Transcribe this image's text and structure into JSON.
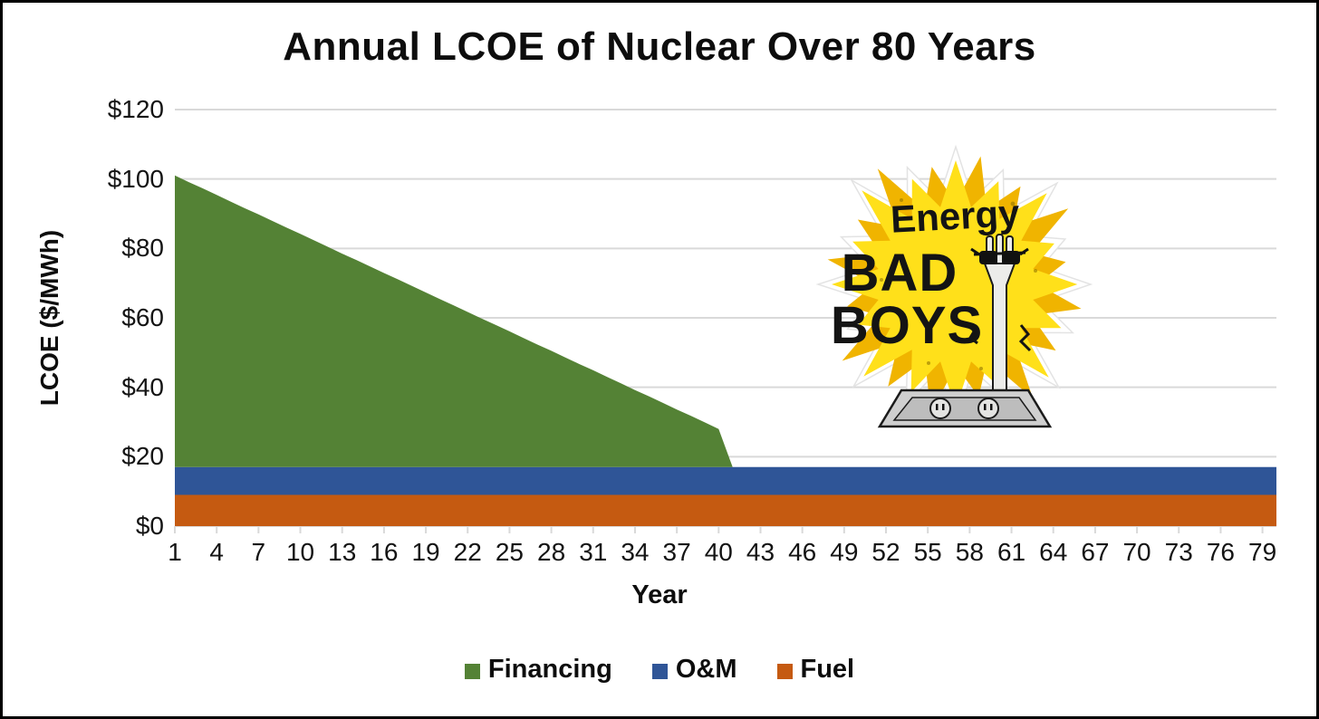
{
  "title": "Annual LCOE of Nuclear Over 80 Years",
  "y_axis": {
    "title": "LCOE ($/MWh)",
    "tick_labels": [
      "$0",
      "$20",
      "$40",
      "$60",
      "$80",
      "$100",
      "$120"
    ],
    "min": 0,
    "max": 120,
    "step": 20
  },
  "x_axis": {
    "title": "Year",
    "tick_labels": [
      "1",
      "4",
      "7",
      "10",
      "13",
      "16",
      "19",
      "22",
      "25",
      "28",
      "31",
      "34",
      "37",
      "40",
      "43",
      "46",
      "49",
      "52",
      "55",
      "58",
      "61",
      "64",
      "67",
      "70",
      "73",
      "76",
      "79"
    ]
  },
  "legend": [
    {
      "label": "Financing",
      "color": "#548235"
    },
    {
      "label": "O&M",
      "color": "#2F5597"
    },
    {
      "label": "Fuel",
      "color": "#C55A11"
    }
  ],
  "logo": {
    "line1": "Energy",
    "line2": "BAD",
    "line3": "BOYS"
  },
  "colors": {
    "financing": "#548235",
    "om": "#2F5597",
    "fuel": "#C55A11",
    "gridline": "#d9d9d9",
    "logo_yellow": "#FFE01A",
    "logo_yellow_dark": "#F0B400"
  },
  "chart_data": {
    "type": "area",
    "stacked": true,
    "title": "Annual LCOE of Nuclear Over 80 Years",
    "xlabel": "Year",
    "ylabel": "LCOE ($/MWh)",
    "ylim": [
      0,
      120
    ],
    "grid": true,
    "legend_position": "bottom",
    "x": [
      1,
      2,
      3,
      4,
      5,
      6,
      7,
      8,
      9,
      10,
      11,
      12,
      13,
      14,
      15,
      16,
      17,
      18,
      19,
      20,
      21,
      22,
      23,
      24,
      25,
      26,
      27,
      28,
      29,
      30,
      31,
      32,
      33,
      34,
      35,
      36,
      37,
      38,
      39,
      40,
      41,
      42,
      43,
      44,
      45,
      46,
      47,
      48,
      49,
      50,
      51,
      52,
      53,
      54,
      55,
      56,
      57,
      58,
      59,
      60,
      61,
      62,
      63,
      64,
      65,
      66,
      67,
      68,
      69,
      70,
      71,
      72,
      73,
      74,
      75,
      76,
      77,
      78,
      79,
      80
    ],
    "series": [
      {
        "name": "Fuel",
        "color": "#C55A11",
        "values": [
          9,
          9,
          9,
          9,
          9,
          9,
          9,
          9,
          9,
          9,
          9,
          9,
          9,
          9,
          9,
          9,
          9,
          9,
          9,
          9,
          9,
          9,
          9,
          9,
          9,
          9,
          9,
          9,
          9,
          9,
          9,
          9,
          9,
          9,
          9,
          9,
          9,
          9,
          9,
          9,
          9,
          9,
          9,
          9,
          9,
          9,
          9,
          9,
          9,
          9,
          9,
          9,
          9,
          9,
          9,
          9,
          9,
          9,
          9,
          9,
          9,
          9,
          9,
          9,
          9,
          9,
          9,
          9,
          9,
          9,
          9,
          9,
          9,
          9,
          9,
          9,
          9,
          9,
          9,
          9
        ]
      },
      {
        "name": "O&M",
        "color": "#2F5597",
        "values": [
          8,
          8,
          8,
          8,
          8,
          8,
          8,
          8,
          8,
          8,
          8,
          8,
          8,
          8,
          8,
          8,
          8,
          8,
          8,
          8,
          8,
          8,
          8,
          8,
          8,
          8,
          8,
          8,
          8,
          8,
          8,
          8,
          8,
          8,
          8,
          8,
          8,
          8,
          8,
          8,
          8,
          8,
          8,
          8,
          8,
          8,
          8,
          8,
          8,
          8,
          8,
          8,
          8,
          8,
          8,
          8,
          8,
          8,
          8,
          8,
          8,
          8,
          8,
          8,
          8,
          8,
          8,
          8,
          8,
          8,
          8,
          8,
          8,
          8,
          8,
          8,
          8,
          8,
          8,
          8
        ]
      },
      {
        "name": "Financing",
        "color": "#548235",
        "values": [
          84,
          82.1,
          80.3,
          78.4,
          76.5,
          74.6,
          72.8,
          70.9,
          69,
          67.2,
          65.3,
          63.4,
          61.5,
          59.7,
          57.8,
          55.9,
          54.1,
          52.2,
          50.3,
          48.4,
          46.6,
          44.7,
          42.8,
          41,
          39.1,
          37.2,
          35.3,
          33.5,
          31.6,
          29.7,
          27.9,
          26,
          24.1,
          22.2,
          20.4,
          18.5,
          16.6,
          14.8,
          12.9,
          11,
          0,
          0,
          0,
          0,
          0,
          0,
          0,
          0,
          0,
          0,
          0,
          0,
          0,
          0,
          0,
          0,
          0,
          0,
          0,
          0,
          0,
          0,
          0,
          0,
          0,
          0,
          0,
          0,
          0,
          0,
          0,
          0,
          0,
          0,
          0,
          0,
          0,
          0,
          0,
          0
        ]
      }
    ]
  }
}
